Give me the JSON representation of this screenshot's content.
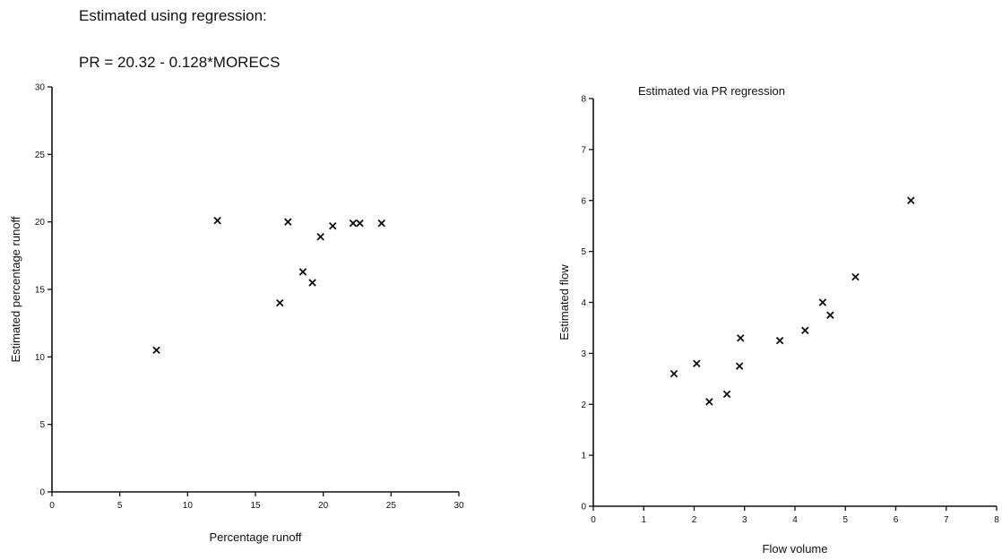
{
  "header": {
    "line1": "Estimated using regression:",
    "line2": "PR = 20.32 - 0.128*MORECS"
  },
  "chart_data": [
    {
      "type": "scatter",
      "title": "",
      "xlabel": "Percentage runoff",
      "ylabel": "Estimated percentage runoff",
      "xlim": [
        0,
        30
      ],
      "ylim": [
        0,
        30
      ],
      "xticks": [
        0,
        5,
        10,
        15,
        20,
        25,
        30
      ],
      "yticks": [
        0,
        5,
        10,
        15,
        20,
        25,
        30
      ],
      "grid": false,
      "marker": "x",
      "points": [
        {
          "x": 7.7,
          "y": 10.5
        },
        {
          "x": 12.2,
          "y": 20.1
        },
        {
          "x": 16.8,
          "y": 14.0
        },
        {
          "x": 17.4,
          "y": 20.0
        },
        {
          "x": 18.5,
          "y": 16.3
        },
        {
          "x": 19.2,
          "y": 15.5
        },
        {
          "x": 19.8,
          "y": 18.9
        },
        {
          "x": 20.7,
          "y": 19.7
        },
        {
          "x": 22.2,
          "y": 19.9
        },
        {
          "x": 22.7,
          "y": 19.9
        },
        {
          "x": 24.3,
          "y": 19.9
        }
      ]
    },
    {
      "type": "scatter",
      "title": "Estimated via PR regression",
      "xlabel": "Flow volume",
      "ylabel": "Estimated flow",
      "xlim": [
        0,
        8
      ],
      "ylim": [
        0,
        8
      ],
      "xticks": [
        0,
        1,
        2,
        3,
        4,
        5,
        6,
        7,
        8
      ],
      "yticks": [
        0,
        1,
        2,
        3,
        4,
        5,
        6,
        7,
        8
      ],
      "grid": false,
      "marker": "x",
      "points": [
        {
          "x": 1.6,
          "y": 2.6
        },
        {
          "x": 2.05,
          "y": 2.8
        },
        {
          "x": 2.3,
          "y": 2.05
        },
        {
          "x": 2.65,
          "y": 2.2
        },
        {
          "x": 2.9,
          "y": 2.75
        },
        {
          "x": 2.92,
          "y": 3.3
        },
        {
          "x": 3.7,
          "y": 3.25
        },
        {
          "x": 4.2,
          "y": 3.45
        },
        {
          "x": 4.55,
          "y": 4.0
        },
        {
          "x": 4.7,
          "y": 3.75
        },
        {
          "x": 5.2,
          "y": 4.5
        },
        {
          "x": 6.3,
          "y": 6.0
        }
      ]
    }
  ]
}
